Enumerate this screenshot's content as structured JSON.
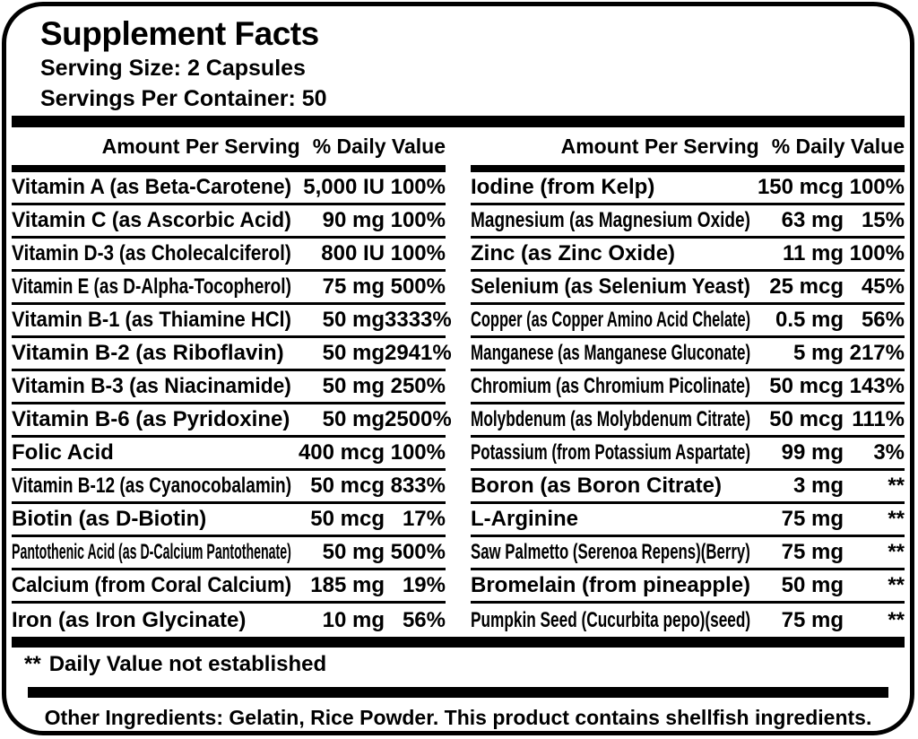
{
  "header": {
    "title": "Supplement Facts",
    "serving_size": "Serving Size: 2 Capsules",
    "servings_per_container": "Servings Per Container: 50"
  },
  "table": {
    "amount_header": "Amount Per Serving",
    "dv_header": "% Daily Value",
    "left_rows": [
      {
        "name": "Vitamin A (as Beta-Carotene)",
        "amount": "5,000 IU",
        "dv": "100%"
      },
      {
        "name": "Vitamin C (as Ascorbic Acid)",
        "amount": "90 mg",
        "dv": "100%"
      },
      {
        "name": "Vitamin D-3 (as Cholecalciferol)",
        "amount": "800 IU",
        "dv": "100%"
      },
      {
        "name": "Vitamin E (as D-Alpha-Tocopherol)",
        "amount": "75 mg",
        "dv": "500%"
      },
      {
        "name": "Vitamin B-1 (as Thiamine HCl)",
        "amount": "50 mg",
        "dv": "3333%"
      },
      {
        "name": "Vitamin B-2 (as Riboflavin)",
        "amount": "50 mg",
        "dv": "2941%"
      },
      {
        "name": "Vitamin B-3 (as Niacinamide)",
        "amount": "50 mg",
        "dv": "250%"
      },
      {
        "name": "Vitamin B-6 (as Pyridoxine)",
        "amount": "50 mg",
        "dv": "2500%"
      },
      {
        "name": "Folic Acid",
        "amount": "400 mcg",
        "dv": "100%"
      },
      {
        "name": "Vitamin B-12 (as Cyanocobalamin)",
        "amount": "50 mcg",
        "dv": "833%"
      },
      {
        "name": "Biotin (as D-Biotin)",
        "amount": "50 mcg",
        "dv": "17%"
      },
      {
        "name": "Pantothenic Acid (as D-Calcium Pantothenate)",
        "amount": "50 mg",
        "dv": "500%"
      },
      {
        "name": "Calcium (from Coral Calcium)",
        "amount": "185 mg",
        "dv": "19%"
      },
      {
        "name": "Iron (as Iron Glycinate)",
        "amount": "10 mg",
        "dv": "56%"
      }
    ],
    "right_rows": [
      {
        "name": "Iodine (from Kelp)",
        "amount": "150 mcg",
        "dv": "100%"
      },
      {
        "name": "Magnesium (as Magnesium Oxide)",
        "amount": "63 mg",
        "dv": "15%"
      },
      {
        "name": "Zinc (as Zinc Oxide)",
        "amount": "11 mg",
        "dv": "100%"
      },
      {
        "name": "Selenium (as Selenium Yeast)",
        "amount": "25 mcg",
        "dv": "45%"
      },
      {
        "name": "Copper (as Copper Amino Acid Chelate)",
        "amount": "0.5 mg",
        "dv": "56%"
      },
      {
        "name": "Manganese (as Manganese Gluconate)",
        "amount": "5 mg",
        "dv": "217%"
      },
      {
        "name": "Chromium (as Chromium Picolinate)",
        "amount": "50 mcg",
        "dv": "143%"
      },
      {
        "name": "Molybdenum (as Molybdenum Citrate)",
        "amount": "50 mcg",
        "dv": "111%"
      },
      {
        "name": "Potassium (from Potassium Aspartate)",
        "amount": "99 mg",
        "dv": "3%"
      },
      {
        "name": "Boron (as Boron Citrate)",
        "amount": "3 mg",
        "dv": "**"
      },
      {
        "name": "L-Arginine",
        "amount": "75 mg",
        "dv": "**"
      },
      {
        "name": "Saw Palmetto (Serenoa Repens)(Berry)",
        "amount": "75 mg",
        "dv": "**"
      },
      {
        "name": "Bromelain (from pineapple)",
        "amount": "50 mg",
        "dv": "**"
      },
      {
        "name": "Pumpkin Seed (Cucurbita pepo)(seed)",
        "amount": "75 mg",
        "dv": "**"
      }
    ]
  },
  "footnotes": {
    "dv_note_symbol": "**",
    "dv_note_text": "Daily Value not established",
    "other_ingredients": "Other Ingredients: Gelatin, Rice Powder. This product contains shellfish ingredients."
  },
  "colors": {
    "ink": "#000000",
    "background": "#ffffff"
  }
}
